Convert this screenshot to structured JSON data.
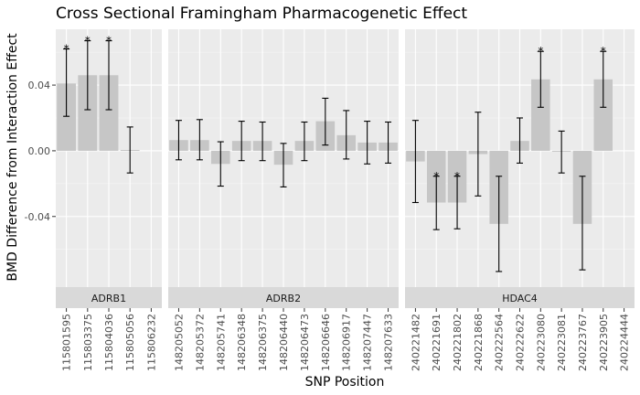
{
  "chart_data": {
    "type": "bar",
    "title": "Cross Sectional Framingham Pharmacogenetic Effect",
    "xlabel": "SNP Position",
    "ylabel": "BMD Difference from Interaction Effect",
    "ylim": [
      -0.083,
      0.074
    ],
    "yticks": [
      {
        "value": 0.04,
        "label": "0.04"
      },
      {
        "value": 0.0,
        "label": "0.00"
      },
      {
        "value": -0.04,
        "label": "-0.04"
      }
    ],
    "grid": true,
    "facets": [
      {
        "label": "ADRB1",
        "bars": [
          {
            "snp": "115801595",
            "value": 0.041,
            "lo": 0.021,
            "hi": 0.062,
            "sig": "*"
          },
          {
            "snp": "115803375",
            "value": 0.046,
            "lo": 0.025,
            "hi": 0.067,
            "sig": "*"
          },
          {
            "snp": "115804036",
            "value": 0.046,
            "lo": 0.025,
            "hi": 0.067,
            "sig": "*"
          },
          {
            "snp": "115805056",
            "value": 0.0005,
            "lo": -0.0135,
            "hi": 0.0145,
            "sig": ""
          },
          {
            "snp": "115806232",
            "value": null,
            "lo": null,
            "hi": null,
            "sig": ""
          }
        ]
      },
      {
        "label": "ADRB2",
        "bars": [
          {
            "snp": "148205052",
            "value": 0.0065,
            "lo": -0.0055,
            "hi": 0.0185,
            "sig": ""
          },
          {
            "snp": "148205372",
            "value": 0.0065,
            "lo": -0.0055,
            "hi": 0.019,
            "sig": ""
          },
          {
            "snp": "148205741",
            "value": -0.008,
            "lo": -0.0215,
            "hi": 0.0055,
            "sig": ""
          },
          {
            "snp": "148206348",
            "value": 0.006,
            "lo": -0.006,
            "hi": 0.018,
            "sig": ""
          },
          {
            "snp": "148206375",
            "value": 0.006,
            "lo": -0.006,
            "hi": 0.0175,
            "sig": ""
          },
          {
            "snp": "148206440",
            "value": -0.0085,
            "lo": -0.022,
            "hi": 0.0045,
            "sig": ""
          },
          {
            "snp": "148206473",
            "value": 0.006,
            "lo": -0.006,
            "hi": 0.0175,
            "sig": ""
          },
          {
            "snp": "148206646",
            "value": 0.018,
            "lo": 0.0035,
            "hi": 0.032,
            "sig": ""
          },
          {
            "snp": "148206917",
            "value": 0.0095,
            "lo": -0.005,
            "hi": 0.0245,
            "sig": ""
          },
          {
            "snp": "148207447",
            "value": 0.005,
            "lo": -0.008,
            "hi": 0.018,
            "sig": ""
          },
          {
            "snp": "148207633",
            "value": 0.005,
            "lo": -0.0075,
            "hi": 0.0175,
            "sig": ""
          }
        ]
      },
      {
        "label": "HDAC4",
        "bars": [
          {
            "snp": "240221482",
            "value": -0.0065,
            "lo": -0.0315,
            "hi": 0.0185,
            "sig": ""
          },
          {
            "snp": "240221691",
            "value": -0.0315,
            "lo": -0.048,
            "hi": -0.0155,
            "sig": "*"
          },
          {
            "snp": "240221802",
            "value": -0.0315,
            "lo": -0.0475,
            "hi": -0.0155,
            "sig": "*"
          },
          {
            "snp": "240221868",
            "value": -0.002,
            "lo": -0.0275,
            "hi": 0.0235,
            "sig": ""
          },
          {
            "snp": "240222564",
            "value": -0.0445,
            "lo": -0.0735,
            "hi": -0.0155,
            "sig": ""
          },
          {
            "snp": "240222622",
            "value": 0.006,
            "lo": -0.0075,
            "hi": 0.02,
            "sig": ""
          },
          {
            "snp": "240223080",
            "value": 0.0435,
            "lo": 0.0265,
            "hi": 0.0605,
            "sig": "*"
          },
          {
            "snp": "240223081",
            "value": -0.0005,
            "lo": -0.0135,
            "hi": 0.012,
            "sig": ""
          },
          {
            "snp": "240223767",
            "value": -0.0445,
            "lo": -0.0725,
            "hi": -0.0155,
            "sig": ""
          },
          {
            "snp": "240223905",
            "value": 0.0435,
            "lo": 0.0265,
            "hi": 0.0605,
            "sig": "*"
          },
          {
            "snp": "240224444",
            "value": null,
            "lo": null,
            "hi": null,
            "sig": ""
          }
        ]
      }
    ],
    "colors": {
      "panel_bg": "#ebebeb",
      "grid_major": "#ffffff",
      "grid_minor": "#f5f5f5",
      "bar_fill": "#c6c6c6",
      "strip_bg": "#d9d9d9",
      "error_bar": "#000000"
    }
  }
}
